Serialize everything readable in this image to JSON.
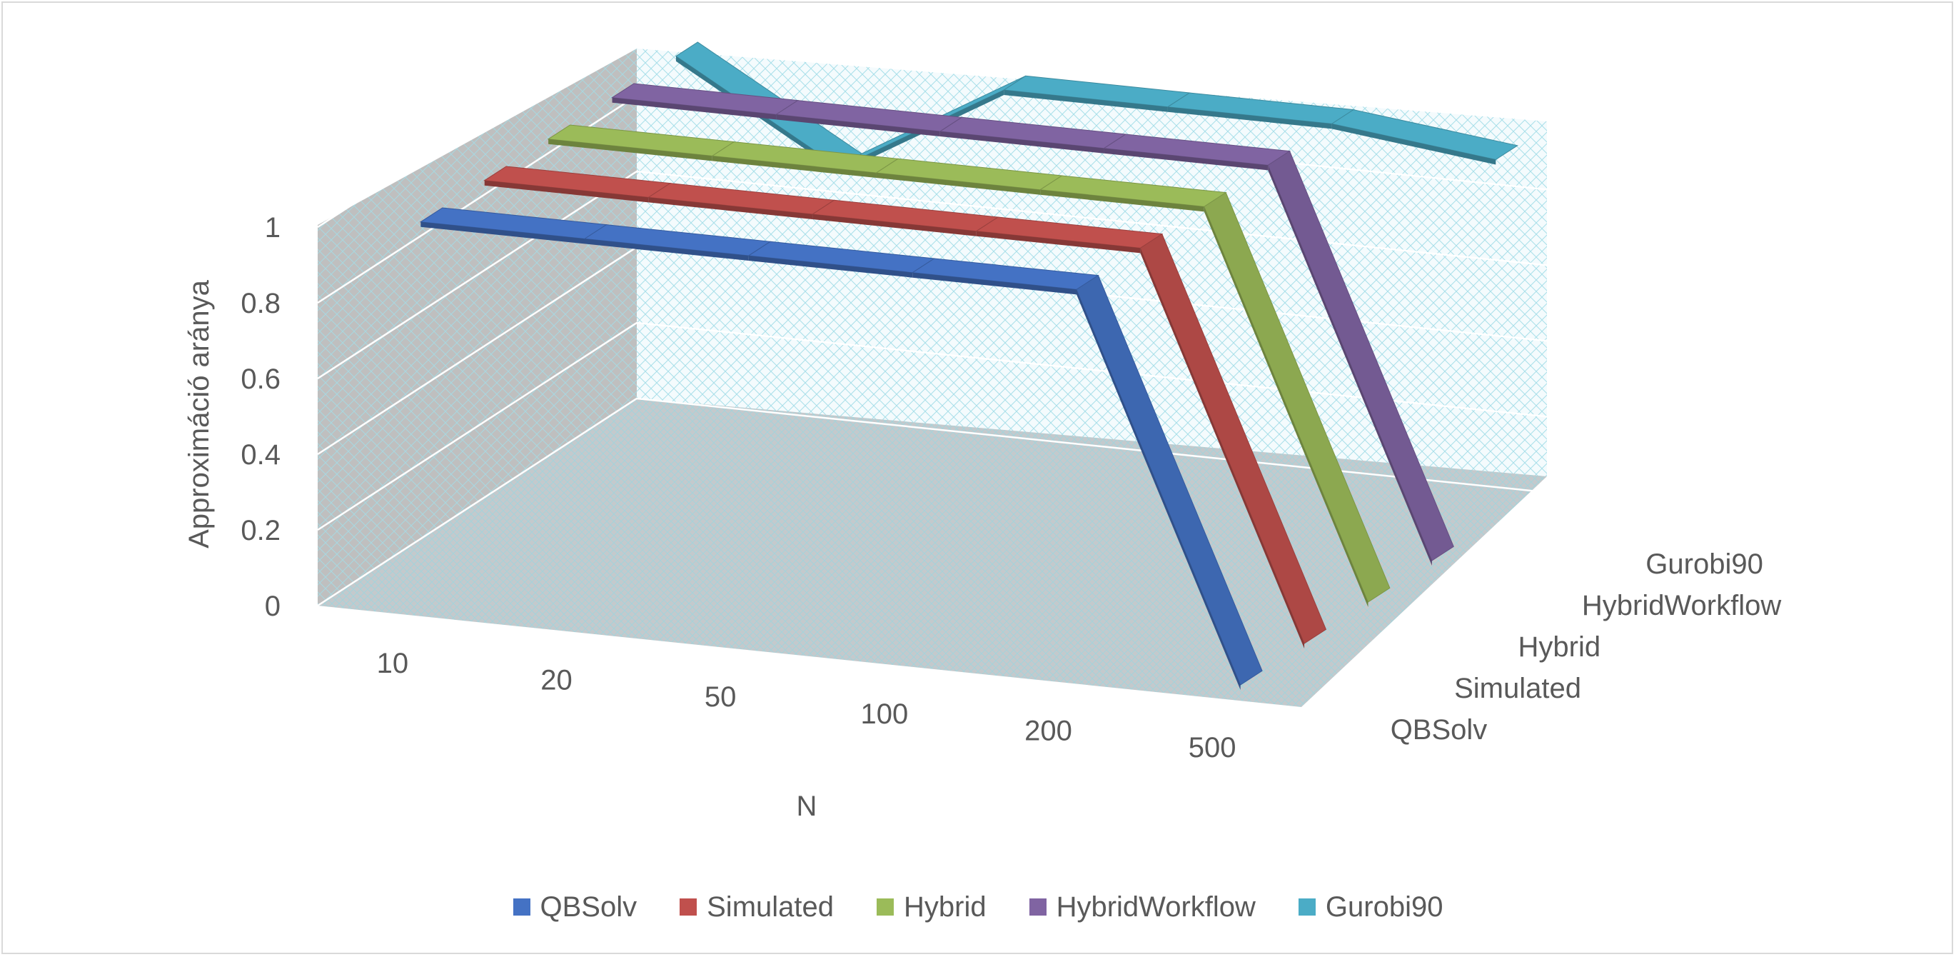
{
  "chart_data": {
    "type": "line",
    "subtype": "3d-line",
    "title": "",
    "xlabel": "N",
    "ylabel": "Approximáció aránya",
    "x": [
      "10",
      "20",
      "50",
      "100",
      "200",
      "500"
    ],
    "depth_categories": [
      "QBSolv",
      "Simulated",
      "Hybrid",
      "HybridWorkflow",
      "Gurobi90"
    ],
    "ylim": [
      0,
      1
    ],
    "yticks": [
      "0",
      "0.2",
      "0.4",
      "0.6",
      "0.8",
      "1"
    ],
    "grid": true,
    "legend_position": "bottom",
    "series": [
      {
        "name": "QBSolv",
        "color": "#4472c4",
        "values": [
          1,
          1,
          1,
          1,
          1,
          0
        ]
      },
      {
        "name": "Simulated",
        "color": "#c0504d",
        "values": [
          1,
          1,
          1,
          1,
          1,
          0
        ]
      },
      {
        "name": "Hybrid",
        "color": "#9bbb59",
        "values": [
          1,
          1,
          1,
          1,
          1,
          0
        ]
      },
      {
        "name": "HybridWorkflow",
        "color": "#8064a2",
        "values": [
          1,
          1,
          1,
          1,
          1,
          0
        ]
      },
      {
        "name": "Gurobi90",
        "color": "#4bacc6",
        "values": [
          1,
          0.75,
          1,
          1,
          1,
          0.95
        ]
      }
    ]
  }
}
